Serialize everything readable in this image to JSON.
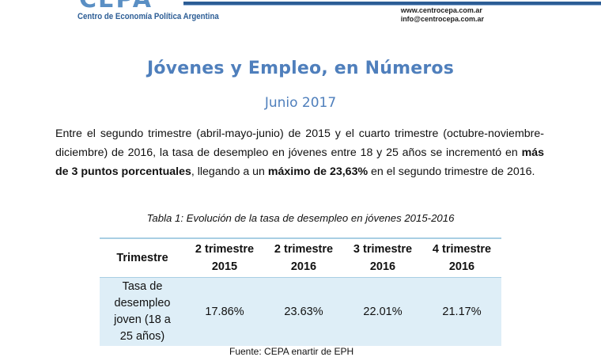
{
  "header": {
    "logo_text": "CEPA",
    "org_name": "Centro de Economía Política Argentina",
    "website": "www.centrocepa.com.ar",
    "email": "info@centrocepa.com.ar",
    "brand_color": "#2c5d95"
  },
  "document": {
    "title": "Jóvenes y Empleo, en Números",
    "subtitle": "Junio 2017",
    "paragraph": {
      "part1": "Entre el segundo trimestre (abril-mayo-junio) de 2015 y el cuarto trimestre (octubre-noviembre-diciembre) de 2016, la tasa de desempleo en jóvenes entre 18 y 25 años se incrementó en ",
      "bold1": "más de 3 puntos porcentuales",
      "part2": ", llegando a un ",
      "bold2": "máximo de 23,63%",
      "part3": " en el segundo trimestre de 2016."
    },
    "table_caption": "Tabla 1: Evolución de la tasa de desempleo en jóvenes 2015-2016",
    "source": "Fuente: CEPA enartir de EPH"
  },
  "table": {
    "headers": [
      [
        "Trimestre",
        ""
      ],
      [
        "2 trimestre",
        "2015"
      ],
      [
        "2 trimestre",
        "2016"
      ],
      [
        "3 trimestre",
        "2016"
      ],
      [
        "4 trimestre",
        "2016"
      ]
    ],
    "row_label": [
      "Tasa de",
      "desempleo",
      "joven (18 a",
      "25 años)"
    ],
    "values": [
      "17.86%",
      "23.63%",
      "22.01%",
      "21.17%"
    ],
    "accent_color": "#deeef7"
  }
}
